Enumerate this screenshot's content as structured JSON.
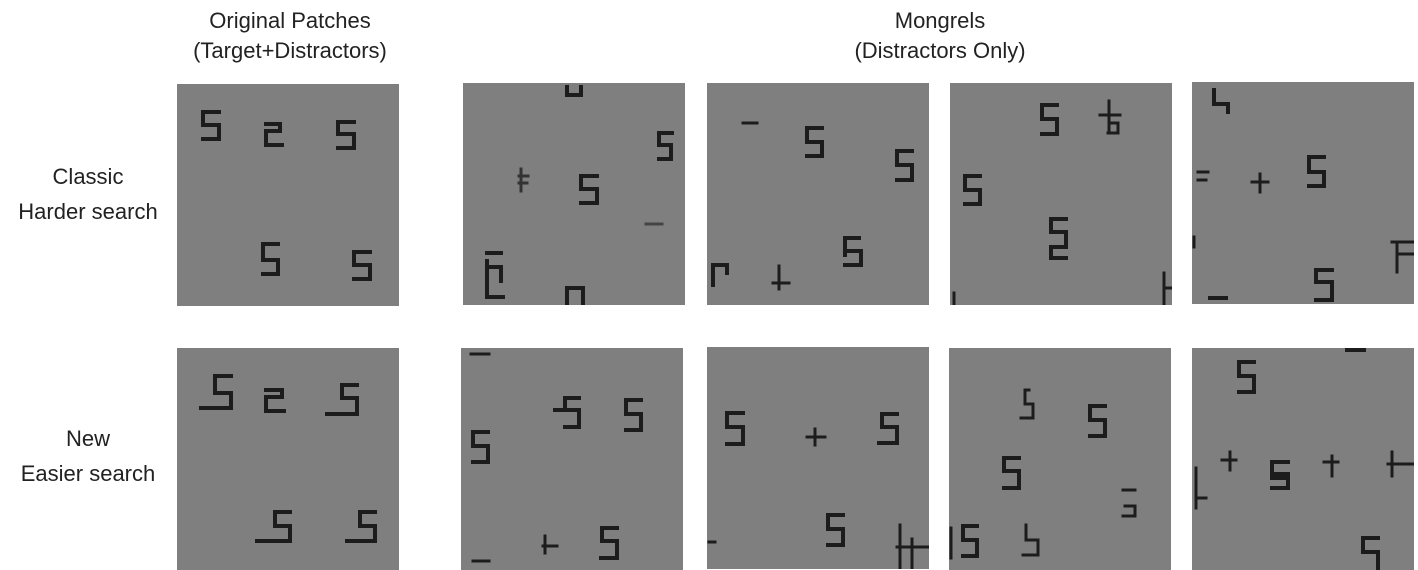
{
  "headers": {
    "original": {
      "line1": "Original Patches",
      "line2": "(Target+Distractors)"
    },
    "mongrels": {
      "line1": "Mongrels",
      "line2": "(Distractors Only)"
    }
  },
  "rows": [
    {
      "id": "classic",
      "label_line1": "Classic",
      "label_line2": "Harder search"
    },
    {
      "id": "new",
      "label_line1": "New",
      "label_line2": "Easier search"
    }
  ],
  "colors": {
    "patch_bg": "#7f7f7f",
    "mongrel_bg": "#838383",
    "glyph": "#1c1c1c"
  },
  "patch_count_per_row": {
    "original": 1,
    "mongrels": 4
  }
}
